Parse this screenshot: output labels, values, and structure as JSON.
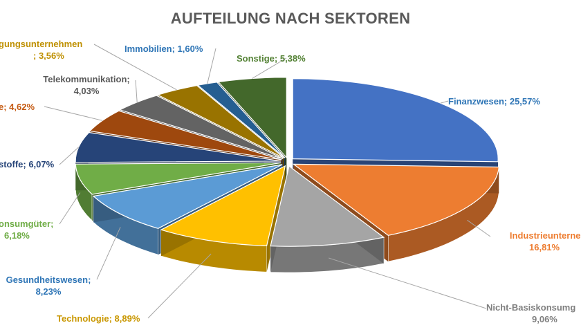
{
  "chart_data": {
    "type": "pie",
    "title": "AUFTEILUNG NACH SEKTOREN",
    "slices": [
      {
        "name": "Finanzwesen",
        "value": 25.57,
        "label": "Finanzwesen; 25,57%",
        "color": "#4472C4",
        "label_color": "#2E75B6"
      },
      {
        "name": "Industrieunternehmen",
        "value": 16.81,
        "label_line1": "Industrieunternehm",
        "label_line2": "16,81%",
        "color": "#ED7D31",
        "label_color": "#ED7D31"
      },
      {
        "name": "Nicht-Basiskonsumgüter",
        "value": 9.06,
        "label_line1": "Nicht-Basiskonsumg",
        "label_line2": "9,06%",
        "color": "#A5A5A5",
        "label_color": "#7F7F7F"
      },
      {
        "name": "Technologie",
        "value": 8.89,
        "label": "Technologie; 8,89%",
        "color": "#FFC000",
        "label_color": "#C99700"
      },
      {
        "name": "Gesundheitswesen",
        "value": 8.23,
        "label_line1": "Gesundheitswesen;",
        "label_line2": "8,23%",
        "color": "#5B9BD5",
        "label_color": "#2E75B6"
      },
      {
        "name": "Basiskonsumgüter",
        "value": 6.18,
        "label_line1": "onsumgüter;",
        "label_line2": "6,18%",
        "color": "#70AD47",
        "label_color": "#70AD47"
      },
      {
        "name": "Rohstoffe",
        "value": 6.07,
        "label": "stoffe; 6,07%",
        "color": "#264478",
        "label_color": "#264478"
      },
      {
        "name": "Energie",
        "value": 4.62,
        "label": "e; 4,62%",
        "color": "#9E480E",
        "label_color": "#C55A11"
      },
      {
        "name": "Telekommunikation",
        "value": 4.03,
        "label_line1": "Telekommunikation;",
        "label_line2": "4,03%",
        "color": "#636363",
        "label_color": "#595959"
      },
      {
        "name": "Versorgungsunternehmen",
        "value": 3.56,
        "label_line1": "gungsunternehmen",
        "label_line2": "; 3,56%",
        "color": "#997300",
        "label_color": "#BF9000"
      },
      {
        "name": "Immobilien",
        "value": 1.6,
        "label": "Immobilien; 1,60%",
        "color": "#255E91",
        "label_color": "#2E75B6"
      },
      {
        "name": "Sonstige",
        "value": 5.38,
        "label": "Sonstige; 5,38%",
        "color": "#43682B",
        "label_color": "#548235"
      }
    ]
  }
}
